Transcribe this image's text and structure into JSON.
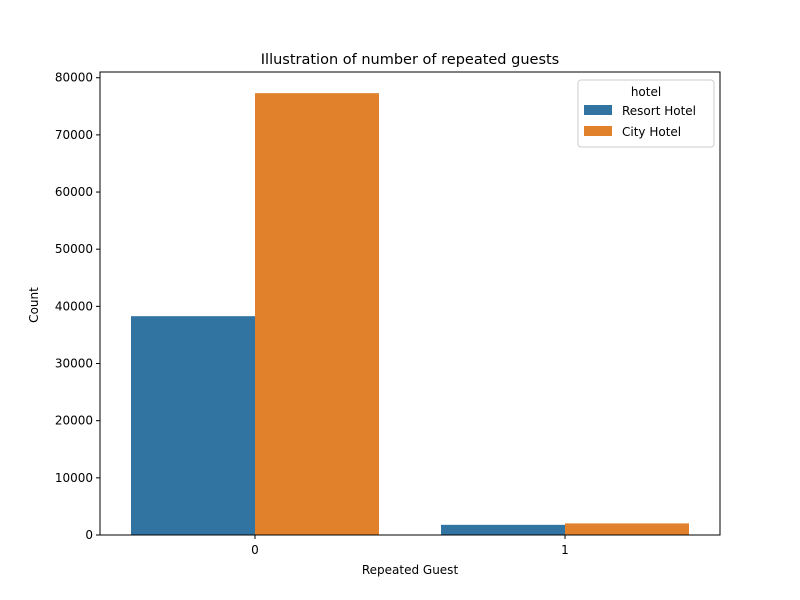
{
  "chart_data": {
    "type": "bar",
    "title": "Illustration of number of repeated guests",
    "xlabel": "Repeated Guest",
    "ylabel": "Count",
    "categories": [
      "0",
      "1"
    ],
    "ylim": [
      0,
      81000
    ],
    "yticks": [
      0,
      10000,
      20000,
      30000,
      40000,
      50000,
      60000,
      70000,
      80000
    ],
    "legend": {
      "title": "hotel",
      "position": "top-right"
    },
    "series": [
      {
        "name": "Resort Hotel",
        "color": "#3274a1",
        "values": [
          38282,
          1778
        ]
      },
      {
        "name": "City Hotel",
        "color": "#e1812c",
        "values": [
          77298,
          2032
        ]
      }
    ]
  }
}
